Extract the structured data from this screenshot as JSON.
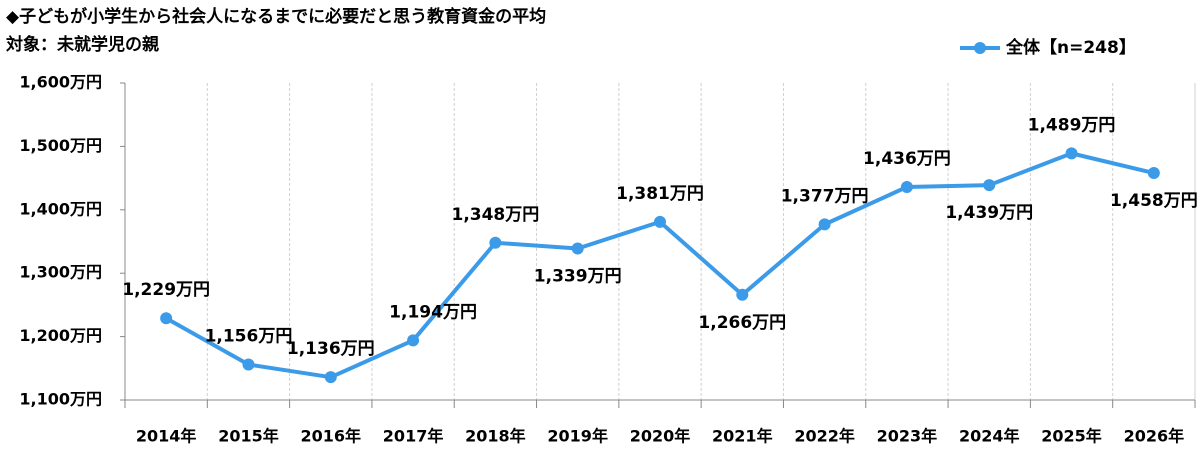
{
  "chart_data": {
    "type": "line",
    "title": "◆子どもが小学生から社会人になるまでに必要だと思う教育資金の平均",
    "subtitle": "対象：未就学児の親",
    "categories": [
      "2014年",
      "2015年",
      "2016年",
      "2017年",
      "2018年",
      "2019年",
      "2020年",
      "2021年",
      "2022年",
      "2023年",
      "2024年",
      "2025年",
      "2026年"
    ],
    "series": [
      {
        "name": "全体【n=248】",
        "color": "#3c9be8",
        "values": [
          1229,
          1156,
          1136,
          1194,
          1348,
          1339,
          1381,
          1266,
          1377,
          1436,
          1439,
          1489,
          1458
        ],
        "value_labels": [
          "1,229万円",
          "1,156万円",
          "1,136万円",
          "1,194万円",
          "1,348万円",
          "1,339万円",
          "1,381万円",
          "1,266万円",
          "1,377万円",
          "1,436万円",
          "1,439万円",
          "1,489万円",
          "1,458万円"
        ]
      }
    ],
    "ylim": [
      1100,
      1600
    ],
    "yticks": [
      {
        "value": 1100,
        "label": "1,100万円"
      },
      {
        "value": 1200,
        "label": "1,200万円"
      },
      {
        "value": 1300,
        "label": "1,300万円"
      },
      {
        "value": 1400,
        "label": "1,400万円"
      },
      {
        "value": 1500,
        "label": "1,500万円"
      },
      {
        "value": 1600,
        "label": "1,600万円"
      }
    ],
    "legend": "top-right"
  }
}
